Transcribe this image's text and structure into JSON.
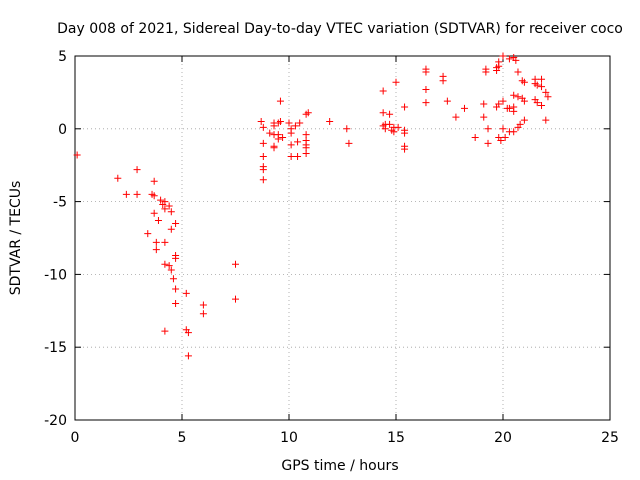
{
  "chart_data": {
    "type": "scatter",
    "title": "Day 008 of 2021, Sidereal Day-to-day VTEC variation (SDTVAR) for receiver coco",
    "xlabel": "GPS time / hours",
    "ylabel": "SDTVAR / TECUs",
    "xlim": [
      0,
      25
    ],
    "ylim": [
      -20,
      5
    ],
    "xticks": [
      0,
      5,
      10,
      15,
      20,
      25
    ],
    "yticks": [
      -20,
      -15,
      -10,
      -5,
      0,
      5
    ],
    "grid": true,
    "marker": "+",
    "color": "#ff0000",
    "series": [
      {
        "name": "coco",
        "points": [
          [
            0.1,
            -1.8
          ],
          [
            2.0,
            -3.4
          ],
          [
            2.4,
            -4.5
          ],
          [
            2.9,
            -2.8
          ],
          [
            2.9,
            -4.5
          ],
          [
            3.4,
            -7.2
          ],
          [
            3.6,
            -4.5
          ],
          [
            3.7,
            -4.6
          ],
          [
            3.7,
            -5.8
          ],
          [
            3.7,
            -3.6
          ],
          [
            3.8,
            -8.3
          ],
          [
            3.8,
            -7.8
          ],
          [
            3.9,
            -6.3
          ],
          [
            4.0,
            -4.9
          ],
          [
            4.1,
            -5.2
          ],
          [
            4.2,
            -5.0
          ],
          [
            4.2,
            -5.5
          ],
          [
            4.2,
            -7.8
          ],
          [
            4.2,
            -9.3
          ],
          [
            4.2,
            -13.9
          ],
          [
            4.4,
            -5.3
          ],
          [
            4.4,
            -9.4
          ],
          [
            4.5,
            -5.7
          ],
          [
            4.5,
            -6.9
          ],
          [
            4.5,
            -9.7
          ],
          [
            4.6,
            -10.3
          ],
          [
            4.7,
            -6.5
          ],
          [
            4.7,
            -8.7
          ],
          [
            4.7,
            -8.9
          ],
          [
            4.7,
            -11.0
          ],
          [
            4.7,
            -12.0
          ],
          [
            5.2,
            -11.3
          ],
          [
            5.2,
            -13.8
          ],
          [
            5.3,
            -14.0
          ],
          [
            5.3,
            -15.6
          ],
          [
            6.0,
            -12.1
          ],
          [
            6.0,
            -12.7
          ],
          [
            7.5,
            -9.3
          ],
          [
            7.5,
            -11.7
          ],
          [
            8.7,
            0.5
          ],
          [
            8.8,
            0.1
          ],
          [
            8.8,
            -1.0
          ],
          [
            8.8,
            -1.9
          ],
          [
            8.8,
            -2.6
          ],
          [
            8.8,
            -2.8
          ],
          [
            8.8,
            -3.5
          ],
          [
            9.1,
            -0.3
          ],
          [
            9.3,
            -0.4
          ],
          [
            9.3,
            0.2
          ],
          [
            9.3,
            0.4
          ],
          [
            9.3,
            -1.2
          ],
          [
            9.3,
            -1.3
          ],
          [
            9.5,
            0.4
          ],
          [
            9.5,
            -0.4
          ],
          [
            9.5,
            -0.7
          ],
          [
            9.6,
            1.9
          ],
          [
            9.6,
            0.5
          ],
          [
            9.7,
            -0.6
          ],
          [
            10.0,
            0.4
          ],
          [
            10.1,
            0.0
          ],
          [
            10.1,
            -0.3
          ],
          [
            10.1,
            -1.1
          ],
          [
            10.1,
            -1.9
          ],
          [
            10.3,
            0.2
          ],
          [
            10.4,
            -0.9
          ],
          [
            10.4,
            -1.9
          ],
          [
            10.5,
            0.4
          ],
          [
            10.8,
            1.0
          ],
          [
            10.8,
            -0.4
          ],
          [
            10.8,
            -0.8
          ],
          [
            10.8,
            -1.1
          ],
          [
            10.8,
            -1.3
          ],
          [
            10.8,
            -1.7
          ],
          [
            10.9,
            1.1
          ],
          [
            11.9,
            0.5
          ],
          [
            12.7,
            0.0
          ],
          [
            12.8,
            -1.0
          ],
          [
            14.4,
            2.6
          ],
          [
            14.4,
            1.1
          ],
          [
            14.4,
            0.2
          ],
          [
            14.5,
            0.3
          ],
          [
            14.5,
            0.0
          ],
          [
            14.7,
            1.0
          ],
          [
            14.7,
            0.3
          ],
          [
            14.8,
            -0.1
          ],
          [
            14.9,
            0.1
          ],
          [
            14.9,
            -0.2
          ],
          [
            15.0,
            3.2
          ],
          [
            15.1,
            0.1
          ],
          [
            15.4,
            1.5
          ],
          [
            15.4,
            -0.1
          ],
          [
            15.4,
            -0.3
          ],
          [
            15.4,
            -1.2
          ],
          [
            15.4,
            -1.4
          ],
          [
            16.4,
            4.1
          ],
          [
            16.4,
            3.9
          ],
          [
            16.4,
            2.7
          ],
          [
            16.4,
            1.8
          ],
          [
            17.2,
            3.6
          ],
          [
            17.2,
            3.3
          ],
          [
            17.4,
            1.9
          ],
          [
            17.8,
            0.8
          ],
          [
            18.2,
            1.4
          ],
          [
            18.7,
            -0.6
          ],
          [
            19.1,
            1.7
          ],
          [
            19.1,
            0.8
          ],
          [
            19.2,
            4.1
          ],
          [
            19.2,
            3.9
          ],
          [
            19.3,
            0.0
          ],
          [
            19.3,
            -1.0
          ],
          [
            19.7,
            4.2
          ],
          [
            19.7,
            4.0
          ],
          [
            19.7,
            1.5
          ],
          [
            19.8,
            4.6
          ],
          [
            19.8,
            4.3
          ],
          [
            19.8,
            1.7
          ],
          [
            19.8,
            -0.6
          ],
          [
            19.9,
            -0.8
          ],
          [
            20.0,
            5.0
          ],
          [
            20.0,
            1.9
          ],
          [
            20.0,
            0.0
          ],
          [
            20.1,
            -0.6
          ],
          [
            20.2,
            1.4
          ],
          [
            20.3,
            4.8
          ],
          [
            20.3,
            1.4
          ],
          [
            20.3,
            -0.2
          ],
          [
            20.5,
            4.9
          ],
          [
            20.5,
            2.3
          ],
          [
            20.5,
            1.5
          ],
          [
            20.5,
            1.2
          ],
          [
            20.5,
            -0.2
          ],
          [
            20.6,
            4.7
          ],
          [
            20.7,
            3.9
          ],
          [
            20.7,
            2.2
          ],
          [
            20.7,
            0.1
          ],
          [
            20.8,
            0.3
          ],
          [
            20.9,
            3.3
          ],
          [
            20.9,
            2.1
          ],
          [
            21.0,
            3.2
          ],
          [
            21.0,
            0.6
          ],
          [
            21.0,
            1.9
          ],
          [
            21.5,
            3.4
          ],
          [
            21.5,
            3.1
          ],
          [
            21.5,
            2.0
          ],
          [
            21.6,
            3.0
          ],
          [
            21.6,
            1.8
          ],
          [
            21.8,
            2.9
          ],
          [
            21.8,
            3.4
          ],
          [
            21.8,
            1.6
          ],
          [
            22.0,
            2.5
          ],
          [
            22.0,
            0.6
          ],
          [
            22.1,
            2.2
          ]
        ]
      }
    ]
  }
}
